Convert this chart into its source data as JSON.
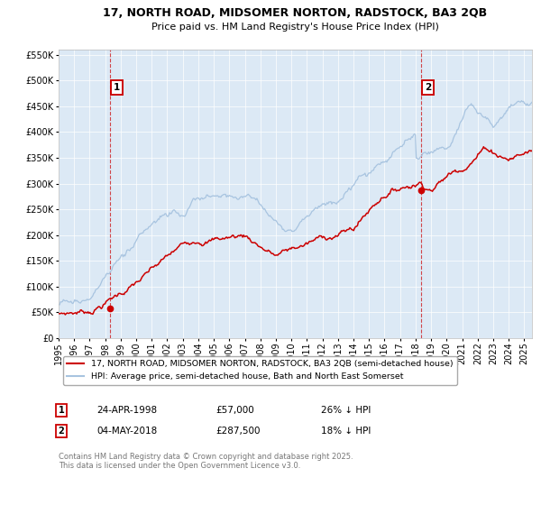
{
  "title_line1": "17, NORTH ROAD, MIDSOMER NORTON, RADSTOCK, BA3 2QB",
  "title_line2": "Price paid vs. HM Land Registry's House Price Index (HPI)",
  "legend_entry1": "17, NORTH ROAD, MIDSOMER NORTON, RADSTOCK, BA3 2QB (semi-detached house)",
  "legend_entry2": "HPI: Average price, semi-detached house, Bath and North East Somerset",
  "annotation1_date": "24-APR-1998",
  "annotation1_price": "£57,000",
  "annotation1_hpi": "26% ↓ HPI",
  "annotation2_date": "04-MAY-2018",
  "annotation2_price": "£287,500",
  "annotation2_hpi": "18% ↓ HPI",
  "footer": "Contains HM Land Registry data © Crown copyright and database right 2025.\nThis data is licensed under the Open Government Licence v3.0.",
  "hpi_color": "#a8c4e0",
  "price_color": "#cc0000",
  "vline1_color": "#cc0000",
  "vline2_color": "#cc0000",
  "plot_bg_color": "#dce9f5",
  "ylim": [
    0,
    560000
  ],
  "yticks": [
    0,
    50000,
    100000,
    150000,
    200000,
    250000,
    300000,
    350000,
    400000,
    450000,
    500000,
    550000
  ],
  "transaction1_x": 1998.31,
  "transaction1_y": 57000,
  "transaction2_x": 2018.34,
  "transaction2_y": 287500,
  "vline1_x": 1998.31,
  "vline2_x": 2018.34,
  "xlim_start": 1995.0,
  "xlim_end": 2025.5
}
